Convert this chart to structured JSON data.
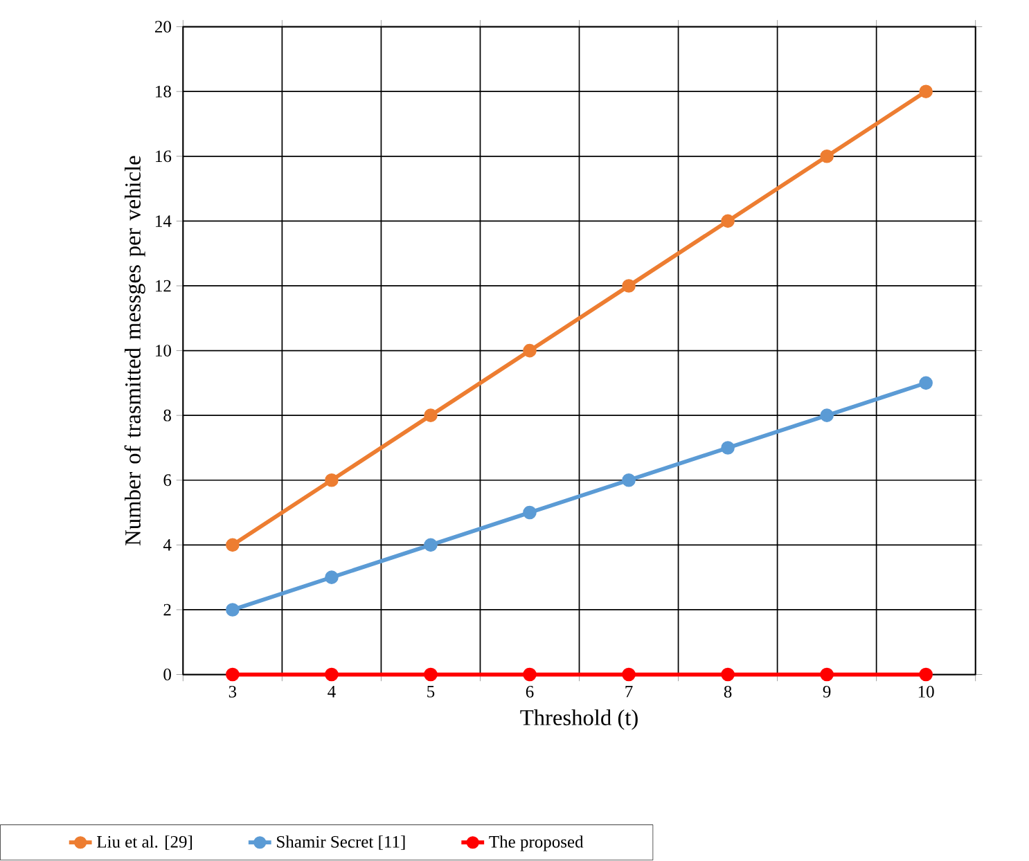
{
  "chart_data": {
    "type": "line",
    "xlabel": "Threshold (t)",
    "ylabel": "Number of trasmitted messges per vehicle",
    "categories": [
      "3",
      "4",
      "5",
      "6",
      "7",
      "8",
      "9",
      "10"
    ],
    "ylim": [
      0,
      20
    ],
    "yticks": [
      0,
      2,
      4,
      6,
      8,
      10,
      12,
      14,
      16,
      18,
      20
    ],
    "grid": true,
    "legend": "bottom",
    "marker": "circle",
    "line_style": "solid",
    "series": [
      {
        "name": "Liu et al. [29]",
        "color": "#ed7d31",
        "values": [
          4,
          6,
          8,
          10,
          12,
          14,
          16,
          18
        ]
      },
      {
        "name": "Shamir Secret [11]",
        "color": "#5b9bd5",
        "values": [
          2,
          3,
          4,
          5,
          6,
          7,
          8,
          9
        ]
      },
      {
        "name": "The proposed",
        "color": "#ff0000",
        "values": [
          0,
          0,
          0,
          0,
          0,
          0,
          0,
          0
        ]
      }
    ]
  }
}
